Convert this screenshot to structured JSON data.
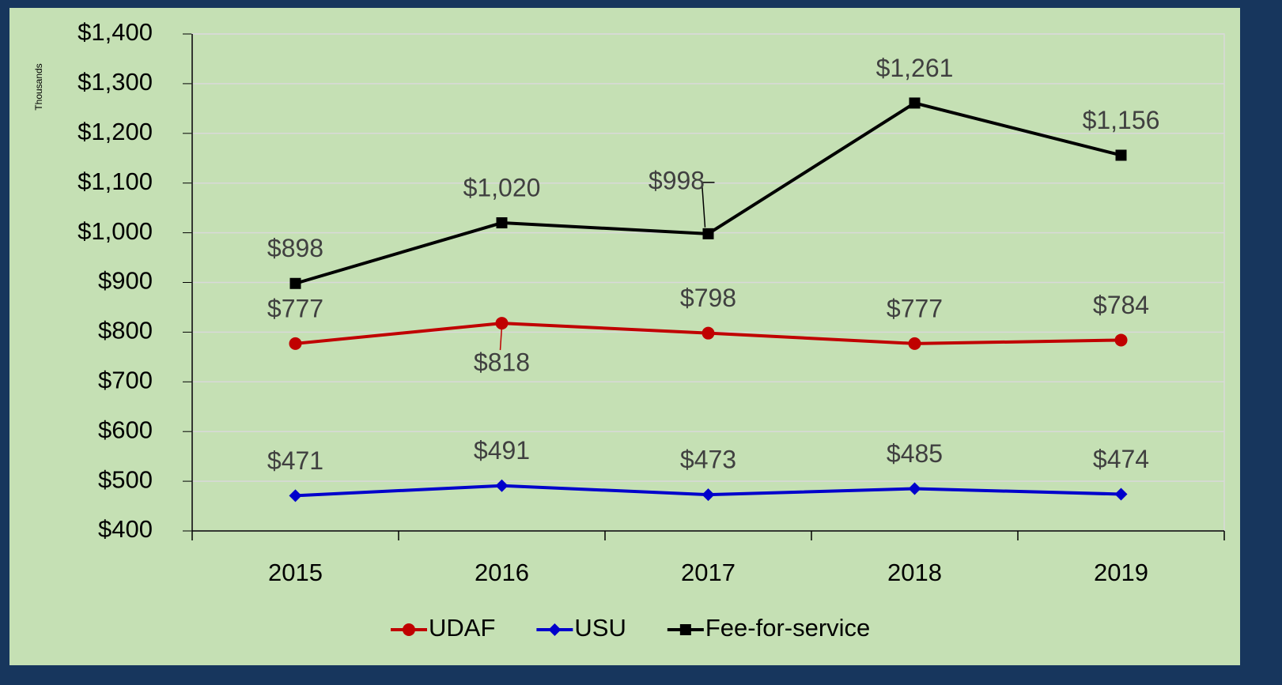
{
  "chart_data": {
    "type": "line",
    "y_axis_label": "Thousands",
    "categories": [
      "2015",
      "2016",
      "2017",
      "2018",
      "2019"
    ],
    "series": [
      {
        "name": "UDAF",
        "color": "#c00000",
        "marker": "circle",
        "values": [
          777,
          818,
          798,
          777,
          784
        ],
        "value_labels": [
          "$777",
          "$818",
          "$798",
          "$777",
          "$784"
        ]
      },
      {
        "name": "USU",
        "color": "#0000cc",
        "marker": "diamond",
        "values": [
          471,
          491,
          473,
          485,
          474
        ],
        "value_labels": [
          "$471",
          "$491",
          "$473",
          "$485",
          "$474"
        ]
      },
      {
        "name": "Fee-for-service",
        "color": "#000000",
        "marker": "square",
        "values": [
          898,
          1020,
          998,
          1261,
          1156
        ],
        "value_labels": [
          "$898",
          "$1,020",
          "$998",
          "$1,261",
          "$1,156"
        ]
      }
    ],
    "ylim": [
      400,
      1400
    ],
    "yticks": [
      {
        "value": 400,
        "label": "$400"
      },
      {
        "value": 500,
        "label": "$500"
      },
      {
        "value": 600,
        "label": "$600"
      },
      {
        "value": 700,
        "label": "$700"
      },
      {
        "value": 800,
        "label": "$800"
      },
      {
        "value": 900,
        "label": "$900"
      },
      {
        "value": 1000,
        "label": "$1,000"
      },
      {
        "value": 1100,
        "label": "$1,100"
      },
      {
        "value": 1200,
        "label": "$1,200"
      },
      {
        "value": 1300,
        "label": "$1,300"
      },
      {
        "value": 1400,
        "label": "$1,400"
      }
    ],
    "grid": true,
    "legend": "bottom"
  }
}
